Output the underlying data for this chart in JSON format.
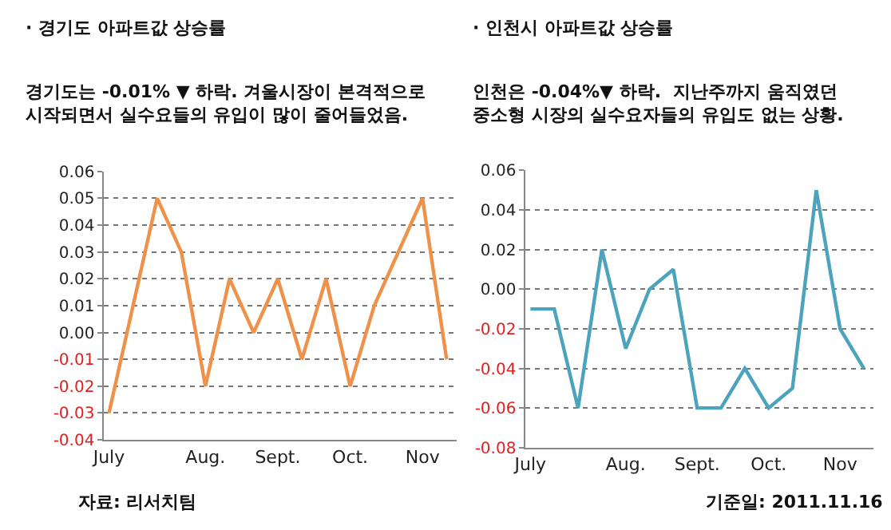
{
  "chart_data": [
    {
      "type": "line",
      "title": "· 경기도 아파트값 상승률",
      "subtitle": "경기도는 -0.01% ▼ 하락. 겨울시장이 본격적으로\n시작되면서 실수요들의 유입이 많이 줄어들었음.",
      "categories": [
        "July",
        null,
        null,
        null,
        "Aug.",
        null,
        null,
        "Sept.",
        null,
        null,
        "Oct.",
        null,
        null,
        "Nov",
        null
      ],
      "series": [
        {
          "color": "#f0914a",
          "values": [
            -0.03,
            0.01,
            0.05,
            0.03,
            -0.02,
            0.02,
            0.0,
            0.02,
            -0.01,
            0.02,
            -0.02,
            0.01,
            0.03,
            0.05,
            -0.01
          ]
        }
      ],
      "ylim": [
        -0.04,
        0.06
      ],
      "yticks": [
        -0.04,
        -0.03,
        -0.02,
        -0.01,
        {
          "value": 0,
          "label": "0.00"
        },
        0.01,
        0.02,
        0.03,
        0.04,
        0.05,
        0.06
      ],
      "grid": "y",
      "annotations": [
        "자료: 리서치팀"
      ]
    },
    {
      "type": "line",
      "title": "· 인천시 아파트값 상승률",
      "subtitle": "인천은 -0.04%▼ 하락.  지난주까지 움직였던\n중소형 시장의 실수요자들의 유입도 없는 상황.",
      "categories": [
        "July",
        null,
        null,
        null,
        "Aug.",
        null,
        null,
        "Sept.",
        null,
        null,
        "Oct.",
        null,
        null,
        "Nov",
        null
      ],
      "series": [
        {
          "color": "#4ba3bd",
          "values": [
            -0.01,
            -0.01,
            -0.06,
            0.02,
            -0.03,
            0.0,
            0.01,
            -0.06,
            -0.06,
            -0.04,
            -0.06,
            -0.05,
            0.05,
            -0.02,
            -0.04
          ]
        }
      ],
      "ylim": [
        -0.08,
        0.06
      ],
      "yticks": [
        -0.08,
        -0.06,
        -0.04,
        -0.02,
        {
          "value": 0,
          "label": "0.00"
        },
        0.02,
        0.04,
        0.06
      ],
      "grid": "y",
      "annotations": [
        "기준일: 2011.11.16"
      ]
    }
  ]
}
